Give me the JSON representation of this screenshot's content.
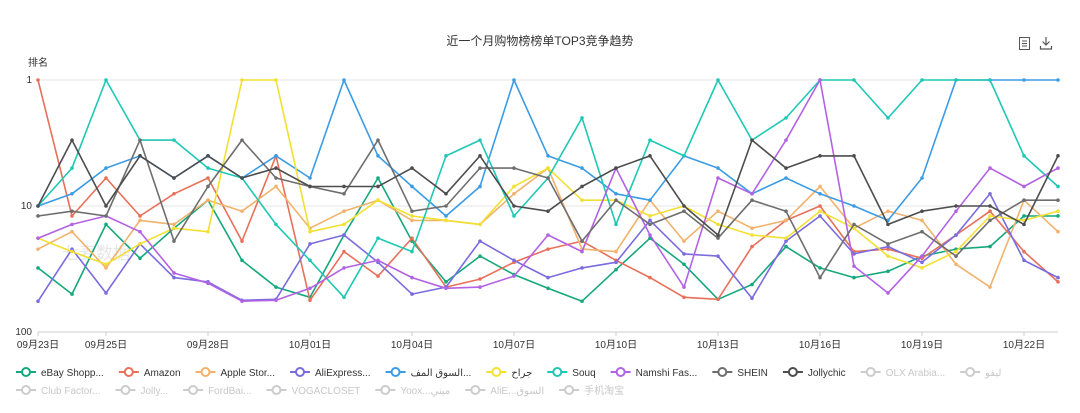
{
  "chart_data": {
    "type": "line",
    "title": "近一个月购物榜榜单TOP3竞争趋势",
    "ylabel": "排名",
    "y_scale": "log",
    "ylim": [
      1,
      100
    ],
    "yticks": [
      "1",
      "10",
      "100"
    ],
    "x": [
      "09月23日",
      "09月24日",
      "09月25日",
      "09月26日",
      "09月27日",
      "09月28日",
      "09月29日",
      "09月30日",
      "10月01日",
      "10月02日",
      "10月03日",
      "10月04日",
      "10月05日",
      "10月06日",
      "10月07日",
      "10月08日",
      "10月09日",
      "10月10日",
      "10月11日",
      "10月12日",
      "10月13日",
      "10月14日",
      "10月15日",
      "10月16日",
      "10月17日",
      "10月18日",
      "10月19日",
      "10月20日",
      "10月21日",
      "10月22日",
      "10月23日"
    ],
    "x_tick_labels": [
      "09月23日",
      "09月25日",
      "09月28日",
      "10月01日",
      "10月04日",
      "10月07日",
      "10月10日",
      "10月13日",
      "10月16日",
      "10月19日",
      "10月22日"
    ],
    "grid": "horizontal",
    "legend_position": "bottom",
    "watermark": "七麦数据",
    "series": [
      {
        "name": "eBay Shopp...",
        "color": "#14a87c",
        "active": true,
        "values": [
          31,
          50,
          14,
          26,
          15,
          9,
          27,
          44,
          53,
          17,
          6,
          19,
          40,
          25,
          35,
          45,
          57,
          32,
          18,
          29,
          55,
          42,
          21,
          31,
          37,
          33,
          25,
          22,
          21,
          12,
          12
        ]
      },
      {
        "name": "Amazon",
        "color": "#e8705a",
        "active": true,
        "values": [
          1,
          12,
          6,
          12,
          8,
          6,
          19,
          4,
          56,
          23,
          36,
          18,
          44,
          38,
          28,
          22,
          19,
          27,
          37,
          53,
          55,
          21,
          13,
          10,
          23,
          22,
          26,
          17,
          11,
          23,
          40
        ]
      },
      {
        "name": "Apple Stor...",
        "color": "#f2b26d",
        "active": true,
        "values": [
          22,
          16,
          31,
          13,
          14,
          9,
          11,
          7,
          15,
          11,
          9,
          13,
          13,
          14,
          8,
          5,
          22,
          23,
          9,
          19,
          11,
          15,
          13,
          7,
          15,
          11,
          13,
          29,
          44,
          9,
          16
        ]
      },
      {
        "name": "AliExpress...",
        "color": "#7a6cdf",
        "active": true,
        "values": [
          57,
          22,
          49,
          20,
          37,
          40,
          56,
          55,
          20,
          17,
          28,
          50,
          44,
          19,
          27,
          37,
          31,
          28,
          13,
          24,
          25,
          54,
          19,
          12,
          24,
          21,
          28,
          17,
          8,
          27,
          37
        ]
      },
      {
        "name": "السوق المف...",
        "color": "#3b9ce6",
        "active": true,
        "values": [
          10,
          8,
          5,
          4,
          6,
          4,
          6,
          4,
          6,
          1,
          4,
          7,
          12,
          7,
          1,
          4,
          5,
          8,
          9,
          4,
          5,
          8,
          6,
          8,
          10,
          13,
          6,
          1,
          1,
          1,
          1
        ]
      },
      {
        "name": "جراح",
        "color": "#f2e033",
        "active": true,
        "values": [
          18,
          23,
          29,
          20,
          15,
          16,
          1,
          1,
          16,
          14,
          9,
          12,
          13,
          14,
          7,
          5,
          9,
          9,
          12,
          10,
          14,
          17,
          18,
          11,
          15,
          25,
          31,
          23,
          12,
          13,
          11
        ]
      },
      {
        "name": "Souq",
        "color": "#1fc8b4",
        "active": true,
        "values": [
          10,
          5,
          1,
          3,
          3,
          5,
          6,
          14,
          27,
          53,
          18,
          23,
          4,
          3,
          12,
          6,
          2,
          14,
          3,
          4,
          1,
          3,
          2,
          1,
          1,
          2,
          1,
          1,
          1,
          4,
          7
        ]
      },
      {
        "name": "Namshi Fas...",
        "color": "#b362e3",
        "active": true,
        "values": [
          18,
          14,
          12,
          16,
          34,
          41,
          57,
          56,
          45,
          31,
          27,
          37,
          45,
          44,
          36,
          17,
          23,
          5,
          17,
          44,
          6,
          8,
          3,
          1,
          30,
          49,
          25,
          11,
          5,
          7,
          5
        ]
      },
      {
        "name": "SHEIN",
        "color": "#6e6e6e",
        "active": true,
        "values": [
          12,
          11,
          12,
          3,
          19,
          7,
          3,
          6,
          7,
          8,
          3,
          11,
          10,
          5,
          5,
          6,
          19,
          9,
          14,
          11,
          18,
          9,
          11,
          37,
          14,
          20,
          16,
          25,
          13,
          9,
          9
        ]
      },
      {
        "name": "Jollychic",
        "color": "#4d4d4d",
        "active": true,
        "values": [
          10,
          3,
          10,
          4,
          6,
          4,
          6,
          5,
          7,
          7,
          7,
          5,
          8,
          4,
          10,
          11,
          7,
          5,
          4,
          10,
          17,
          3,
          5,
          4,
          4,
          14,
          11,
          10,
          10,
          14,
          4
        ]
      },
      {
        "name": "OLX Arabia...",
        "color": "#cccccc",
        "active": false
      },
      {
        "name": "ليفو",
        "color": "#cccccc",
        "active": false
      },
      {
        "name": "Club Factor...",
        "color": "#cccccc",
        "active": false
      },
      {
        "name": "Jolly...",
        "color": "#cccccc",
        "active": false
      },
      {
        "name": "FordBai...",
        "color": "#cccccc",
        "active": false
      },
      {
        "name": "VOGACLOSET",
        "color": "#cccccc",
        "active": false
      },
      {
        "name": "Yoox...ميني",
        "color": "#cccccc",
        "active": false
      },
      {
        "name": "AliE...السوق",
        "color": "#cccccc",
        "active": false
      },
      {
        "name": "手机淘宝",
        "color": "#cccccc",
        "active": false
      }
    ]
  },
  "toolbar": {
    "export_icon": "document-icon",
    "download_icon": "download-icon"
  }
}
